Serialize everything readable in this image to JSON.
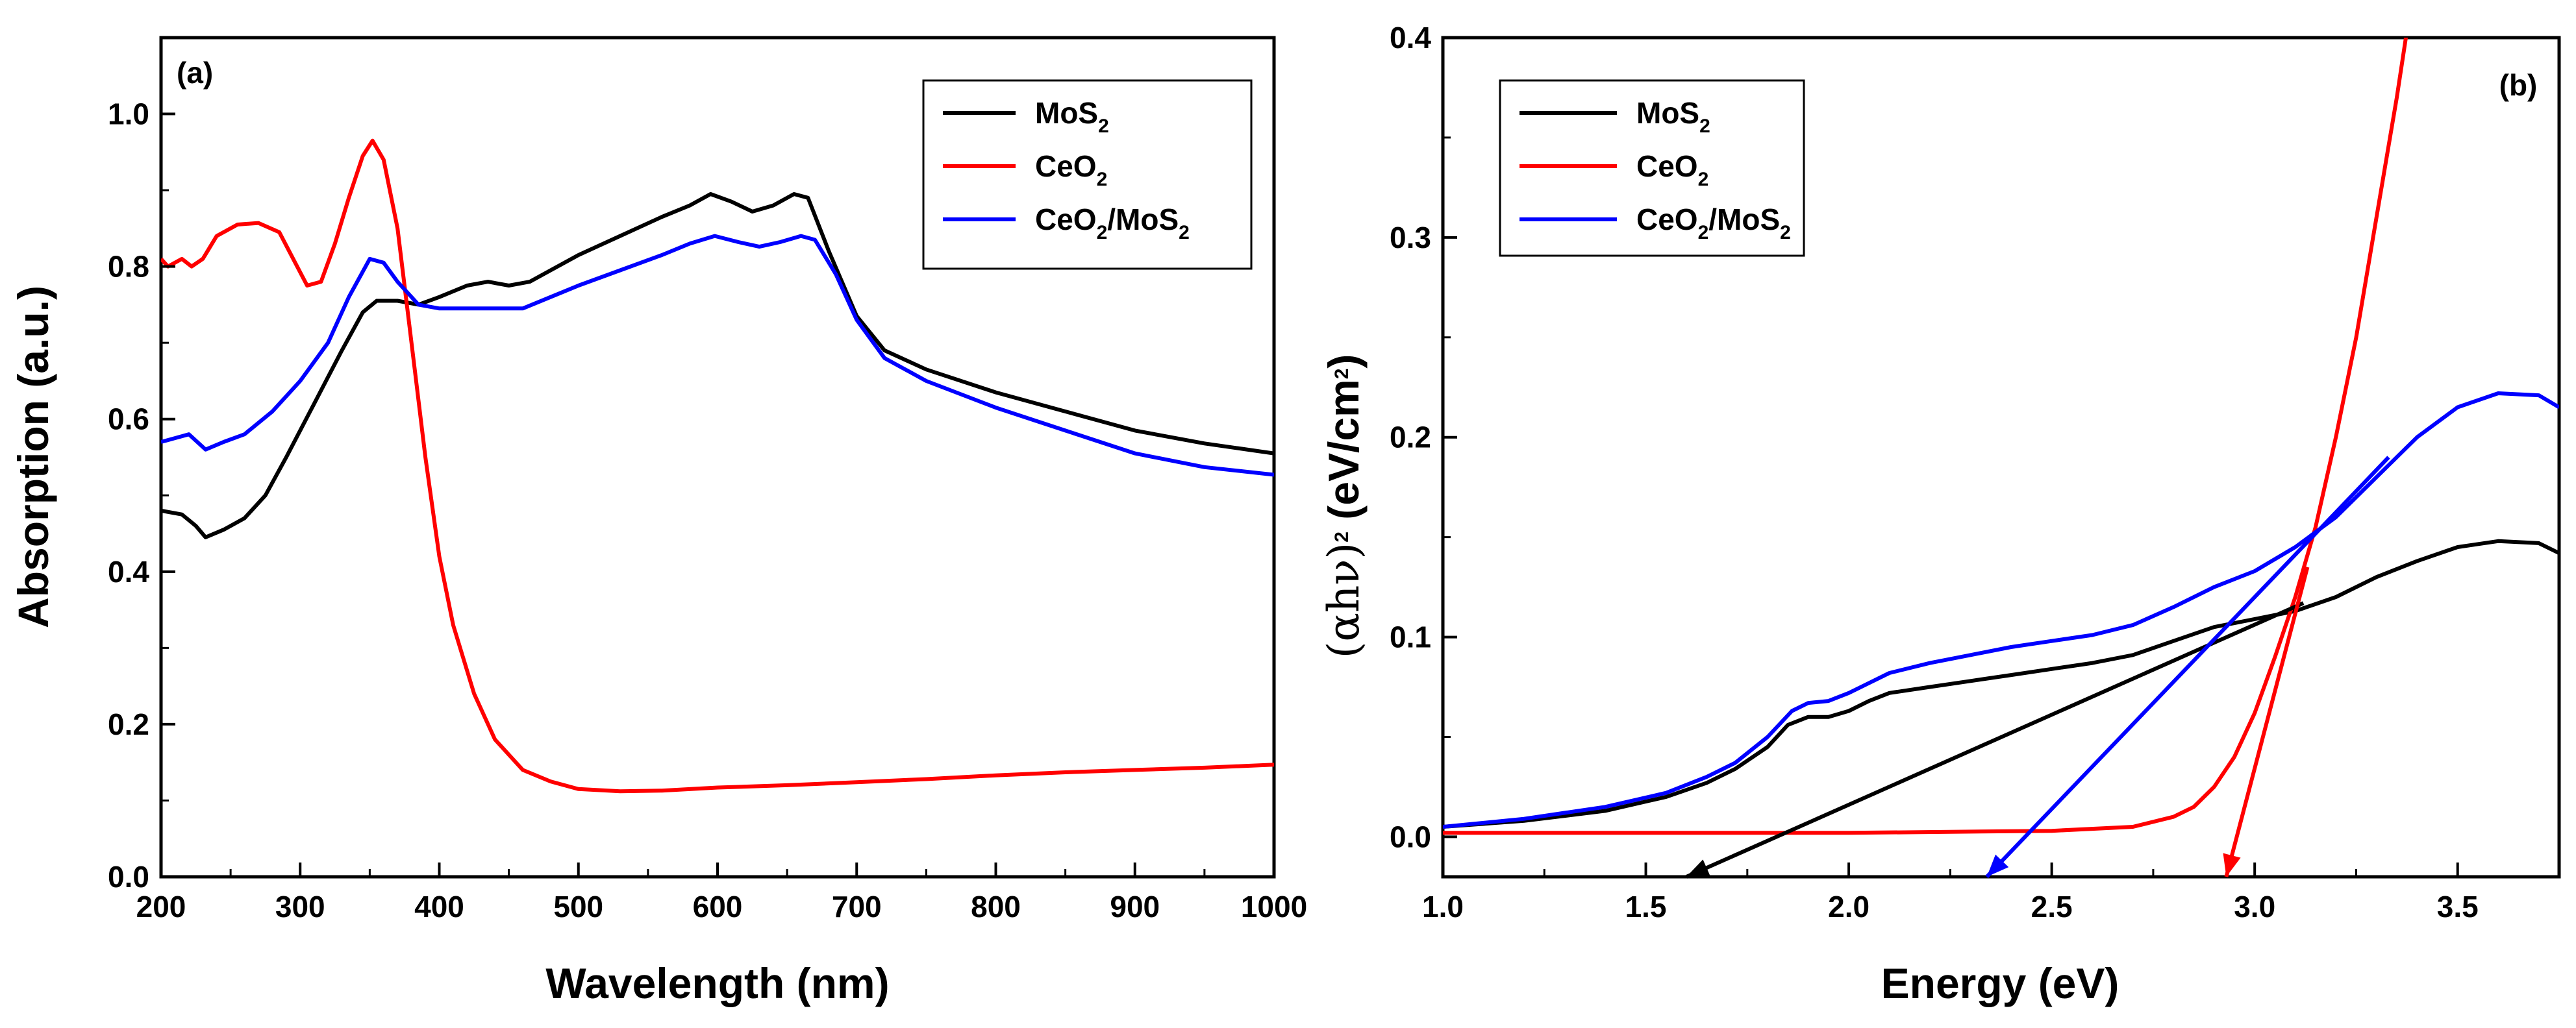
{
  "chart_data": [
    {
      "panel": "(a)",
      "type": "line",
      "title": "",
      "xlabel": "Wavelength (nm)",
      "ylabel": "Absorption (a.u.)",
      "xlim": [
        200,
        1000
      ],
      "ylim": [
        0,
        1.1
      ],
      "xticks": [
        200,
        300,
        400,
        500,
        600,
        700,
        800,
        900,
        1000
      ],
      "yticks": [
        0.0,
        0.2,
        0.4,
        0.6,
        0.8,
        1.0
      ],
      "xtick_labels": [
        "200",
        "300",
        "400",
        "500",
        "600",
        "700",
        "800",
        "900",
        "1000"
      ],
      "ytick_labels": [
        "0.0",
        "0.2",
        "0.4",
        "0.6",
        "0.8",
        "1.0"
      ],
      "legend_position": "top-right",
      "series": [
        {
          "name": "MoS2",
          "label_main": "MoS",
          "label_sub": "2",
          "label_tail": "",
          "color": "#000000",
          "points": [
            [
              200,
              0.48
            ],
            [
              215,
              0.475
            ],
            [
              225,
              0.46
            ],
            [
              232,
              0.445
            ],
            [
              245,
              0.455
            ],
            [
              260,
              0.47
            ],
            [
              275,
              0.5
            ],
            [
              290,
              0.55
            ],
            [
              310,
              0.62
            ],
            [
              330,
              0.69
            ],
            [
              345,
              0.74
            ],
            [
              355,
              0.755
            ],
            [
              370,
              0.755
            ],
            [
              385,
              0.75
            ],
            [
              400,
              0.76
            ],
            [
              420,
              0.775
            ],
            [
              435,
              0.78
            ],
            [
              450,
              0.775
            ],
            [
              465,
              0.78
            ],
            [
              480,
              0.795
            ],
            [
              500,
              0.815
            ],
            [
              530,
              0.84
            ],
            [
              560,
              0.865
            ],
            [
              580,
              0.88
            ],
            [
              595,
              0.895
            ],
            [
              610,
              0.885
            ],
            [
              625,
              0.872
            ],
            [
              640,
              0.88
            ],
            [
              655,
              0.895
            ],
            [
              665,
              0.89
            ],
            [
              680,
              0.82
            ],
            [
              700,
              0.735
            ],
            [
              720,
              0.69
            ],
            [
              750,
              0.665
            ],
            [
              800,
              0.635
            ],
            [
              850,
              0.61
            ],
            [
              900,
              0.585
            ],
            [
              950,
              0.568
            ],
            [
              1000,
              0.555
            ]
          ]
        },
        {
          "name": "CeO2",
          "label_main": "CeO",
          "label_sub": "2",
          "label_tail": "",
          "color": "#ff0000",
          "points": [
            [
              200,
              0.81
            ],
            [
              205,
              0.8
            ],
            [
              215,
              0.81
            ],
            [
              222,
              0.8
            ],
            [
              230,
              0.81
            ],
            [
              240,
              0.84
            ],
            [
              255,
              0.855
            ],
            [
              270,
              0.857
            ],
            [
              285,
              0.845
            ],
            [
              295,
              0.81
            ],
            [
              305,
              0.775
            ],
            [
              315,
              0.78
            ],
            [
              325,
              0.83
            ],
            [
              335,
              0.89
            ],
            [
              345,
              0.945
            ],
            [
              352,
              0.965
            ],
            [
              360,
              0.94
            ],
            [
              370,
              0.85
            ],
            [
              380,
              0.7
            ],
            [
              390,
              0.55
            ],
            [
              400,
              0.42
            ],
            [
              410,
              0.33
            ],
            [
              425,
              0.24
            ],
            [
              440,
              0.18
            ],
            [
              460,
              0.14
            ],
            [
              480,
              0.125
            ],
            [
              500,
              0.115
            ],
            [
              530,
              0.112
            ],
            [
              560,
              0.113
            ],
            [
              600,
              0.117
            ],
            [
              650,
              0.12
            ],
            [
              700,
              0.124
            ],
            [
              750,
              0.128
            ],
            [
              800,
              0.133
            ],
            [
              850,
              0.137
            ],
            [
              900,
              0.14
            ],
            [
              950,
              0.143
            ],
            [
              1000,
              0.147
            ]
          ]
        },
        {
          "name": "CeO2/MoS2",
          "label_main": "CeO",
          "label_sub": "2",
          "label_tail": "/MoS",
          "label_sub2": "2",
          "color": "#0000ff",
          "points": [
            [
              200,
              0.57
            ],
            [
              210,
              0.575
            ],
            [
              220,
              0.58
            ],
            [
              232,
              0.56
            ],
            [
              245,
              0.57
            ],
            [
              260,
              0.58
            ],
            [
              280,
              0.61
            ],
            [
              300,
              0.65
            ],
            [
              320,
              0.7
            ],
            [
              335,
              0.76
            ],
            [
              350,
              0.81
            ],
            [
              360,
              0.805
            ],
            [
              370,
              0.78
            ],
            [
              385,
              0.75
            ],
            [
              400,
              0.745
            ],
            [
              420,
              0.745
            ],
            [
              440,
              0.745
            ],
            [
              460,
              0.745
            ],
            [
              480,
              0.76
            ],
            [
              500,
              0.775
            ],
            [
              530,
              0.795
            ],
            [
              560,
              0.815
            ],
            [
              580,
              0.83
            ],
            [
              598,
              0.84
            ],
            [
              615,
              0.832
            ],
            [
              630,
              0.826
            ],
            [
              645,
              0.832
            ],
            [
              660,
              0.84
            ],
            [
              670,
              0.835
            ],
            [
              685,
              0.79
            ],
            [
              700,
              0.73
            ],
            [
              720,
              0.68
            ],
            [
              750,
              0.65
            ],
            [
              800,
              0.615
            ],
            [
              850,
              0.585
            ],
            [
              900,
              0.555
            ],
            [
              950,
              0.537
            ],
            [
              1000,
              0.527
            ]
          ]
        }
      ]
    },
    {
      "panel": "(b)",
      "type": "line",
      "title": "",
      "xlabel": "Energy (eV)",
      "ylabel_prefix": "(",
      "ylabel_greek": "αhν",
      "ylabel_close": ")",
      "ylabel_sup": "2",
      "ylabel_units": " (eV/cm",
      "ylabel_units_sup": "2",
      "ylabel_units_close": ")",
      "xlim": [
        1.0,
        3.75
      ],
      "ylim": [
        -0.02,
        0.4
      ],
      "xticks": [
        1.0,
        1.5,
        2.0,
        2.5,
        3.0,
        3.5
      ],
      "yticks": [
        0.0,
        0.1,
        0.2,
        0.3,
        0.4
      ],
      "xtick_labels": [
        "1.0",
        "1.5",
        "2.0",
        "2.5",
        "3.0",
        "3.5"
      ],
      "ytick_labels": [
        "0.0",
        "0.1",
        "0.2",
        "0.3",
        "0.4"
      ],
      "legend_position": "top-left",
      "series": [
        {
          "name": "MoS2",
          "label_main": "MoS",
          "label_sub": "2",
          "label_tail": "",
          "color": "#000000",
          "points": [
            [
              1.0,
              0.005
            ],
            [
              1.2,
              0.008
            ],
            [
              1.4,
              0.013
            ],
            [
              1.55,
              0.02
            ],
            [
              1.65,
              0.027
            ],
            [
              1.72,
              0.034
            ],
            [
              1.8,
              0.045
            ],
            [
              1.85,
              0.056
            ],
            [
              1.9,
              0.06
            ],
            [
              1.95,
              0.06
            ],
            [
              2.0,
              0.063
            ],
            [
              2.05,
              0.068
            ],
            [
              2.1,
              0.072
            ],
            [
              2.2,
              0.075
            ],
            [
              2.3,
              0.078
            ],
            [
              2.4,
              0.081
            ],
            [
              2.5,
              0.084
            ],
            [
              2.6,
              0.087
            ],
            [
              2.7,
              0.091
            ],
            [
              2.8,
              0.098
            ],
            [
              2.9,
              0.105
            ],
            [
              3.0,
              0.109
            ],
            [
              3.1,
              0.113
            ],
            [
              3.2,
              0.12
            ],
            [
              3.3,
              0.13
            ],
            [
              3.4,
              0.138
            ],
            [
              3.5,
              0.145
            ],
            [
              3.6,
              0.148
            ],
            [
              3.7,
              0.147
            ],
            [
              3.75,
              0.142
            ]
          ]
        },
        {
          "name": "CeO2",
          "label_main": "CeO",
          "label_sub": "2",
          "label_tail": "",
          "color": "#ff0000",
          "points": [
            [
              1.0,
              0.002
            ],
            [
              1.5,
              0.002
            ],
            [
              2.0,
              0.002
            ],
            [
              2.5,
              0.003
            ],
            [
              2.7,
              0.005
            ],
            [
              2.8,
              0.01
            ],
            [
              2.85,
              0.015
            ],
            [
              2.9,
              0.025
            ],
            [
              2.95,
              0.04
            ],
            [
              3.0,
              0.062
            ],
            [
              3.05,
              0.09
            ],
            [
              3.1,
              0.12
            ],
            [
              3.15,
              0.155
            ],
            [
              3.2,
              0.2
            ],
            [
              3.25,
              0.25
            ],
            [
              3.3,
              0.31
            ],
            [
              3.35,
              0.37
            ],
            [
              3.38,
              0.41
            ]
          ]
        },
        {
          "name": "CeO2/MoS2",
          "label_main": "CeO",
          "label_sub": "2",
          "label_tail": "/MoS",
          "label_sub2": "2",
          "color": "#0000ff",
          "points": [
            [
              1.0,
              0.005
            ],
            [
              1.2,
              0.009
            ],
            [
              1.4,
              0.015
            ],
            [
              1.55,
              0.022
            ],
            [
              1.65,
              0.03
            ],
            [
              1.72,
              0.037
            ],
            [
              1.8,
              0.05
            ],
            [
              1.86,
              0.063
            ],
            [
              1.9,
              0.067
            ],
            [
              1.95,
              0.068
            ],
            [
              2.0,
              0.072
            ],
            [
              2.05,
              0.077
            ],
            [
              2.1,
              0.082
            ],
            [
              2.2,
              0.087
            ],
            [
              2.3,
              0.091
            ],
            [
              2.4,
              0.095
            ],
            [
              2.5,
              0.098
            ],
            [
              2.6,
              0.101
            ],
            [
              2.7,
              0.106
            ],
            [
              2.8,
              0.115
            ],
            [
              2.9,
              0.125
            ],
            [
              3.0,
              0.133
            ],
            [
              3.1,
              0.145
            ],
            [
              3.2,
              0.16
            ],
            [
              3.3,
              0.18
            ],
            [
              3.4,
              0.2
            ],
            [
              3.5,
              0.215
            ],
            [
              3.6,
              0.222
            ],
            [
              3.7,
              0.221
            ],
            [
              3.75,
              0.215
            ]
          ]
        }
      ],
      "tangent_lines": [
        {
          "name": "MoS2 tangent",
          "color": "#000000",
          "from": [
            3.12,
            0.117
          ],
          "to": [
            1.6,
            -0.02
          ]
        },
        {
          "name": "CeO2/MoS2 tangent",
          "color": "#0000ff",
          "from": [
            3.33,
            0.19
          ],
          "to": [
            2.34,
            -0.02
          ]
        },
        {
          "name": "CeO2 tangent",
          "color": "#ff0000",
          "from": [
            3.13,
            0.135
          ],
          "to": [
            2.93,
            -0.02
          ]
        }
      ]
    }
  ]
}
